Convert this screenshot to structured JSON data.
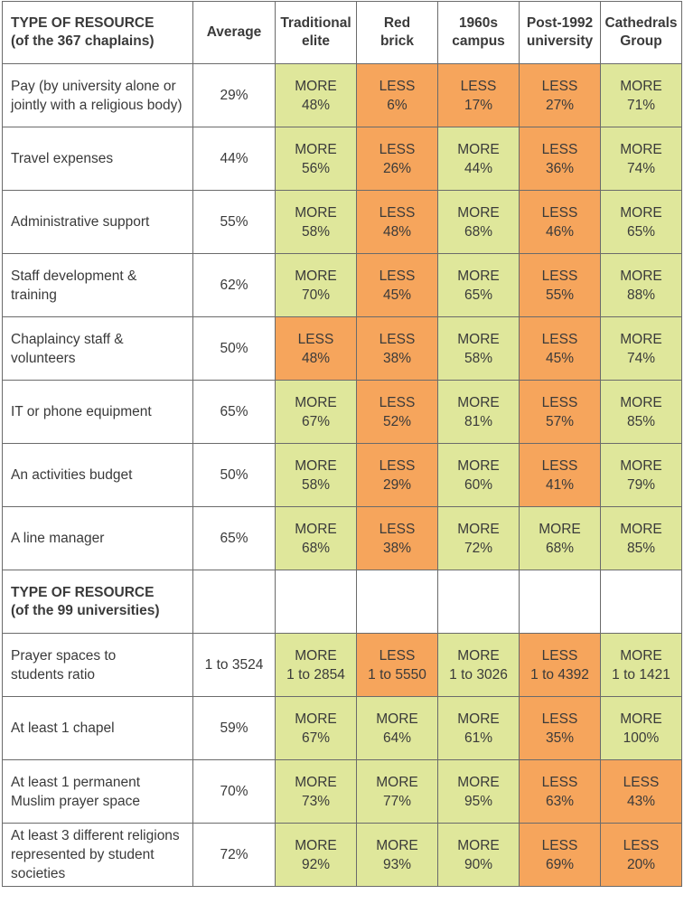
{
  "header": {
    "title_line1": "TYPE OF RESOURCE",
    "title_line2": "(of the 367 chaplains)",
    "average": "Average",
    "columns": [
      {
        "line1": "Traditional",
        "line2": "elite"
      },
      {
        "line1": "Red",
        "line2": "brick"
      },
      {
        "line1": "1960s",
        "line2": "campus"
      },
      {
        "line1": "Post-1992",
        "line2": "university"
      },
      {
        "line1": "Cathedrals",
        "line2": "Group"
      }
    ]
  },
  "section2": {
    "title_line1": "TYPE OF RESOURCE",
    "title_line2": "(of the 99 universities)"
  },
  "colors": {
    "more": "#dfe79b",
    "less": "#f6a55c"
  },
  "rows": [
    {
      "label_line1": "Pay (by university alone or",
      "label_line2": "jointly with a religious body)",
      "average": "29%",
      "cells": [
        {
          "verdict": "MORE",
          "value": "48%"
        },
        {
          "verdict": "LESS",
          "value": "6%"
        },
        {
          "verdict": "LESS",
          "value": "17%"
        },
        {
          "verdict": "LESS",
          "value": "27%"
        },
        {
          "verdict": "MORE",
          "value": "71%"
        }
      ]
    },
    {
      "label_line1": "Travel expenses",
      "label_line2": "",
      "average": "44%",
      "cells": [
        {
          "verdict": "MORE",
          "value": "56%"
        },
        {
          "verdict": "LESS",
          "value": "26%"
        },
        {
          "verdict": "MORE",
          "value": "44%"
        },
        {
          "verdict": "LESS",
          "value": "36%"
        },
        {
          "verdict": "MORE",
          "value": "74%"
        }
      ]
    },
    {
      "label_line1": "Administrative support",
      "label_line2": "",
      "average": "55%",
      "cells": [
        {
          "verdict": "MORE",
          "value": "58%"
        },
        {
          "verdict": "LESS",
          "value": "48%"
        },
        {
          "verdict": "MORE",
          "value": "68%"
        },
        {
          "verdict": "LESS",
          "value": "46%"
        },
        {
          "verdict": "MORE",
          "value": "65%"
        }
      ]
    },
    {
      "label_line1": "Staff development &",
      "label_line2": "training",
      "average": "62%",
      "cells": [
        {
          "verdict": "MORE",
          "value": "70%"
        },
        {
          "verdict": "LESS",
          "value": "45%"
        },
        {
          "verdict": "MORE",
          "value": "65%"
        },
        {
          "verdict": "LESS",
          "value": "55%"
        },
        {
          "verdict": "MORE",
          "value": "88%"
        }
      ]
    },
    {
      "label_line1": "Chaplaincy staff &",
      "label_line2": "volunteers",
      "average": "50%",
      "cells": [
        {
          "verdict": "LESS",
          "value": "48%"
        },
        {
          "verdict": "LESS",
          "value": "38%"
        },
        {
          "verdict": "MORE",
          "value": "58%"
        },
        {
          "verdict": "LESS",
          "value": "45%"
        },
        {
          "verdict": "MORE",
          "value": "74%"
        }
      ]
    },
    {
      "label_line1": "IT or phone equipment",
      "label_line2": "",
      "average": "65%",
      "cells": [
        {
          "verdict": "MORE",
          "value": "67%"
        },
        {
          "verdict": "LESS",
          "value": "52%"
        },
        {
          "verdict": "MORE",
          "value": "81%"
        },
        {
          "verdict": "LESS",
          "value": "57%"
        },
        {
          "verdict": "MORE",
          "value": "85%"
        }
      ]
    },
    {
      "label_line1": "An activities budget",
      "label_line2": "",
      "average": "50%",
      "cells": [
        {
          "verdict": "MORE",
          "value": "58%"
        },
        {
          "verdict": "LESS",
          "value": "29%"
        },
        {
          "verdict": "MORE",
          "value": "60%"
        },
        {
          "verdict": "LESS",
          "value": "41%"
        },
        {
          "verdict": "MORE",
          "value": "79%"
        }
      ]
    },
    {
      "label_line1": "A line manager",
      "label_line2": "",
      "average": "65%",
      "cells": [
        {
          "verdict": "MORE",
          "value": "68%"
        },
        {
          "verdict": "LESS",
          "value": "38%"
        },
        {
          "verdict": "MORE",
          "value": "72%"
        },
        {
          "verdict": "MORE",
          "value": "68%"
        },
        {
          "verdict": "MORE",
          "value": "85%"
        }
      ]
    },
    {
      "section": true
    },
    {
      "label_line1": "Prayer spaces to",
      "label_line2": "students ratio",
      "average": "1 to 3524",
      "cells": [
        {
          "verdict": "MORE",
          "value": "1 to 2854"
        },
        {
          "verdict": "LESS",
          "value": "1 to 5550"
        },
        {
          "verdict": "MORE",
          "value": "1 to 3026"
        },
        {
          "verdict": "LESS",
          "value": "1 to 4392"
        },
        {
          "verdict": "MORE",
          "value": "1 to 1421"
        }
      ]
    },
    {
      "label_line1": "At least 1 chapel",
      "label_line2": "",
      "average": "59%",
      "cells": [
        {
          "verdict": "MORE",
          "value": "67%"
        },
        {
          "verdict": "MORE",
          "value": "64%"
        },
        {
          "verdict": "MORE",
          "value": "61%"
        },
        {
          "verdict": "LESS",
          "value": "35%"
        },
        {
          "verdict": "MORE",
          "value": "100%"
        }
      ]
    },
    {
      "label_line1": "At least 1 permanent",
      "label_line2": "Muslim prayer space",
      "average": "70%",
      "cells": [
        {
          "verdict": "MORE",
          "value": "73%"
        },
        {
          "verdict": "MORE",
          "value": "77%"
        },
        {
          "verdict": "MORE",
          "value": "95%"
        },
        {
          "verdict": "LESS",
          "value": "63%"
        },
        {
          "verdict": "LESS",
          "value": "43%"
        }
      ]
    },
    {
      "label_line1": "At least 3 different religions",
      "label_line2": "represented by student societies",
      "average": "72%",
      "cells": [
        {
          "verdict": "MORE",
          "value": "92%"
        },
        {
          "verdict": "MORE",
          "value": "93%"
        },
        {
          "verdict": "MORE",
          "value": "90%"
        },
        {
          "verdict": "LESS",
          "value": "69%"
        },
        {
          "verdict": "LESS",
          "value": "20%"
        }
      ]
    }
  ]
}
